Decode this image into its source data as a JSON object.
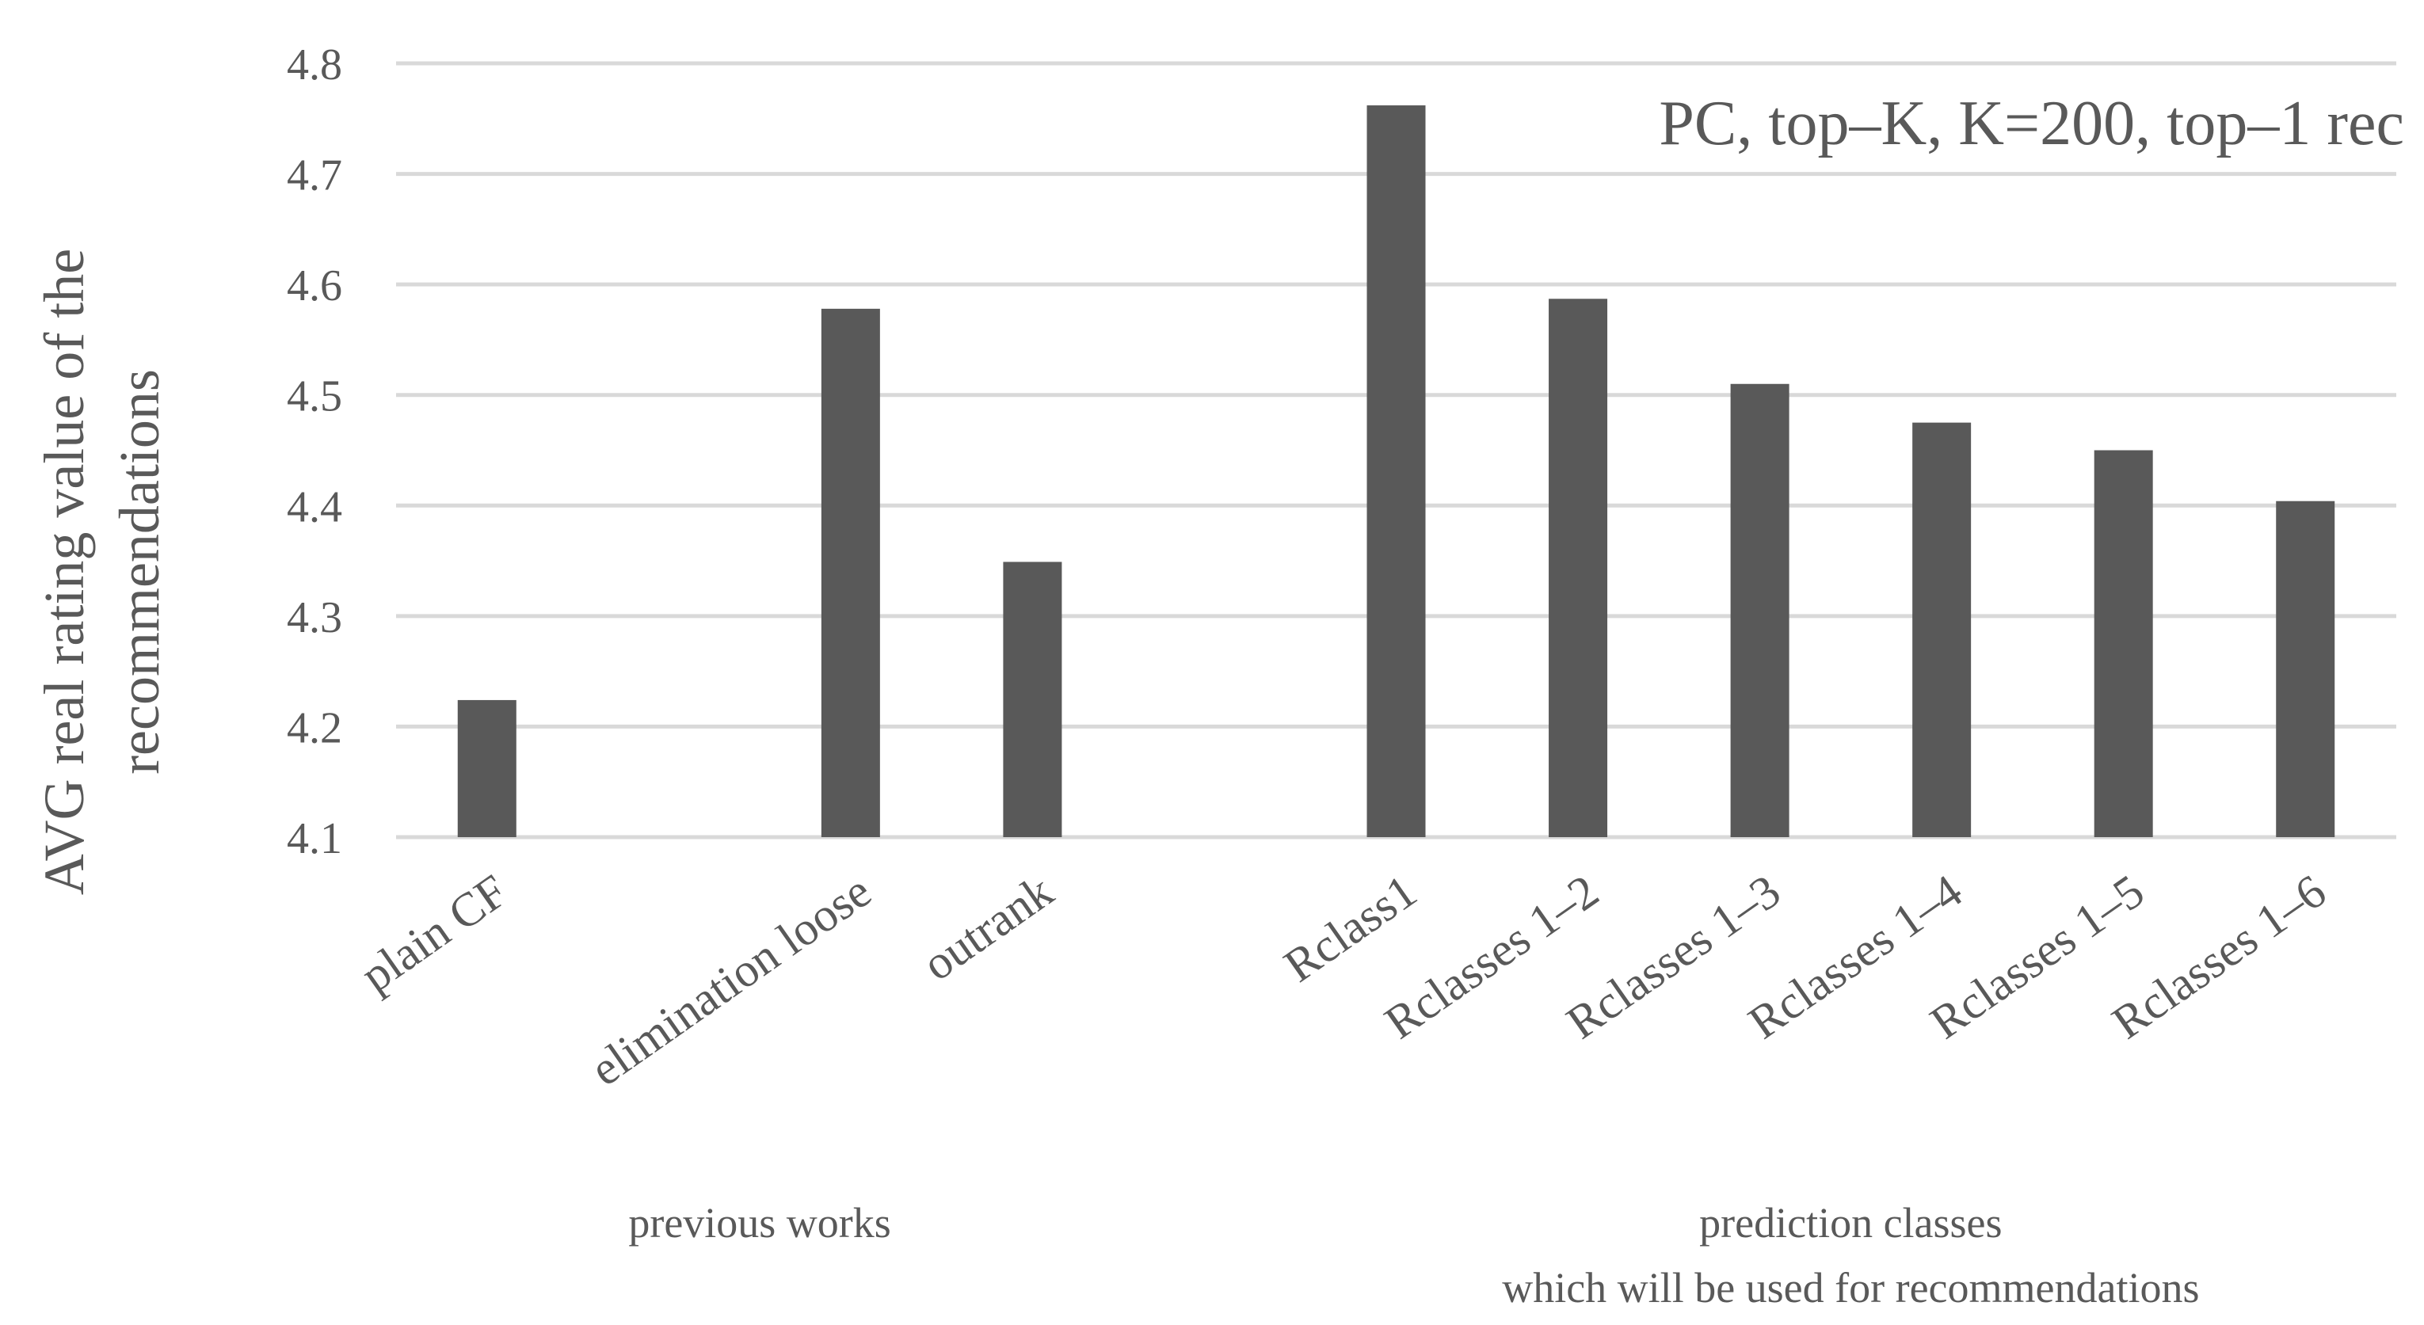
{
  "chart_data": {
    "type": "bar",
    "title": "PC, top–K, K=200, top–1 rec",
    "ylabel": "AVG  real  rating  value of the recommendations",
    "ylabel_lines": [
      "AVG  real  rating  value of the",
      "recommendations"
    ],
    "xlabel": "",
    "ylim": [
      4.1,
      4.8
    ],
    "yticks": [
      "4.1",
      "4.2",
      "4.3",
      "4.4",
      "4.5",
      "4.6",
      "4.7",
      "4.8"
    ],
    "grid": true,
    "legend": "none",
    "bar_color": "#595959",
    "grid_color": "#d9d9d9",
    "slots": 11,
    "categories": [
      {
        "label": "plain CF",
        "value": 4.224,
        "slot": 0
      },
      {
        "label": "elimination loose",
        "value": 4.578,
        "slot": 2
      },
      {
        "label": "outrank",
        "value": 4.349,
        "slot": 3
      },
      {
        "label": "Rclass1",
        "value": 4.762,
        "slot": 5
      },
      {
        "label": "Rclasses 1–2",
        "value": 4.587,
        "slot": 6
      },
      {
        "label": "Rclasses 1–3",
        "value": 4.51,
        "slot": 7
      },
      {
        "label": "Rclasses 1–4",
        "value": 4.475,
        "slot": 8
      },
      {
        "label": "Rclasses 1–5",
        "value": 4.45,
        "slot": 9
      },
      {
        "label": "Rclasses 1–6",
        "value": 4.404,
        "slot": 10
      }
    ],
    "groups": [
      {
        "lines": [
          "previous works"
        ],
        "from_slot": 0,
        "to_slot": 3
      },
      {
        "lines": [
          "prediction classes",
          "which will be used for recommendations"
        ],
        "from_slot": 5,
        "to_slot": 10
      }
    ]
  }
}
